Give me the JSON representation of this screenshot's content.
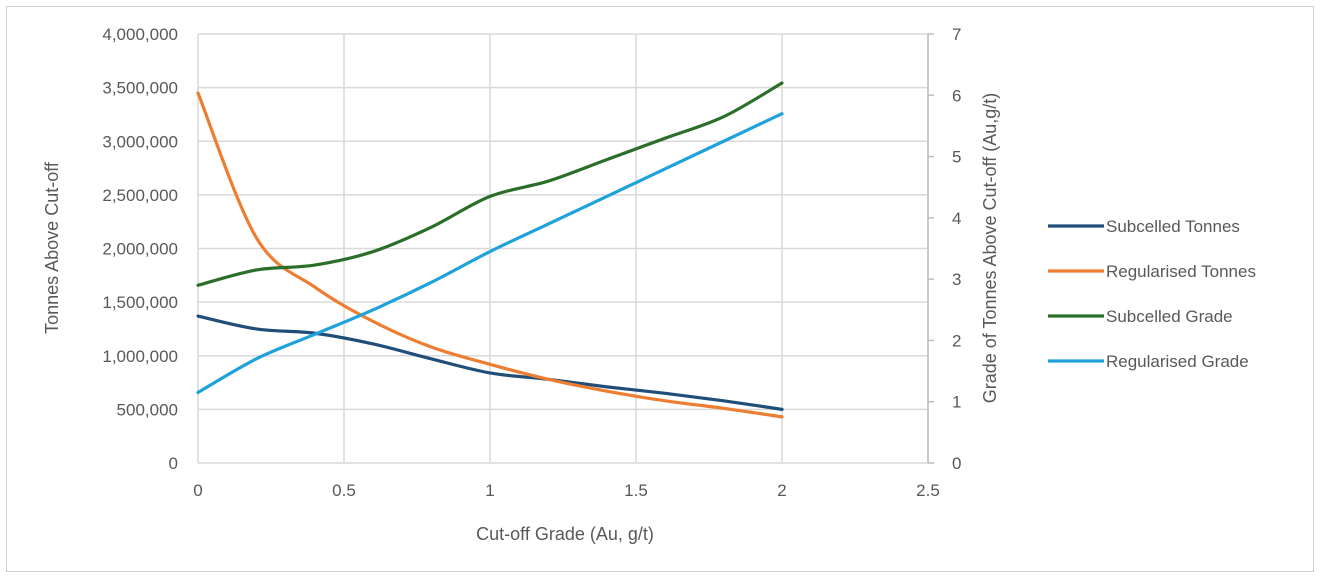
{
  "chart_data": {
    "type": "line",
    "title": "",
    "xlabel": "Cut-off Grade (Au, g/t)",
    "ylabel": "Tonnes Above Cut-off",
    "y2label": "Grade of Tonnes Above Cut-off (Au,g/t)",
    "xlim": [
      0,
      2.5
    ],
    "ylim": [
      0,
      4000000
    ],
    "y2lim": [
      0,
      7
    ],
    "x_ticks": [
      "0",
      "0.5",
      "1",
      "1.5",
      "2",
      "2.5"
    ],
    "y_ticks": [
      "0",
      "500,000",
      "1,000,000",
      "1,500,000",
      "2,000,000",
      "2,500,000",
      "3,000,000",
      "3,500,000",
      "4,000,000"
    ],
    "y2_ticks": [
      "0",
      "1",
      "2",
      "3",
      "4",
      "5",
      "6",
      "7"
    ],
    "x": [
      0,
      0.2,
      0.4,
      0.6,
      0.8,
      1.0,
      1.2,
      1.4,
      1.6,
      1.8,
      2.0
    ],
    "grid": true,
    "legend_position": "right",
    "series": [
      {
        "name": "Subcelled Tonnes",
        "axis": "left",
        "color": "#1f4e79",
        "values": [
          1370000,
          1250000,
          1210000,
          1110000,
          970000,
          840000,
          780000,
          710000,
          650000,
          580000,
          500000
        ]
      },
      {
        "name": "Regularised Tonnes",
        "axis": "left",
        "color": "#ed7d31",
        "values": [
          3450000,
          2100000,
          1640000,
          1320000,
          1080000,
          920000,
          780000,
          670000,
          580000,
          510000,
          430000
        ]
      },
      {
        "name": "Subcelled Grade",
        "axis": "right",
        "color": "#2a6e2a",
        "values": [
          2.9,
          3.15,
          3.23,
          3.45,
          3.85,
          4.35,
          4.6,
          4.95,
          5.3,
          5.65,
          6.2
        ]
      },
      {
        "name": "Regularised Grade",
        "axis": "right",
        "color": "#1fa2dc",
        "values": [
          1.15,
          1.7,
          2.1,
          2.5,
          2.95,
          3.45,
          3.9,
          4.35,
          4.8,
          5.25,
          5.7
        ]
      }
    ]
  }
}
